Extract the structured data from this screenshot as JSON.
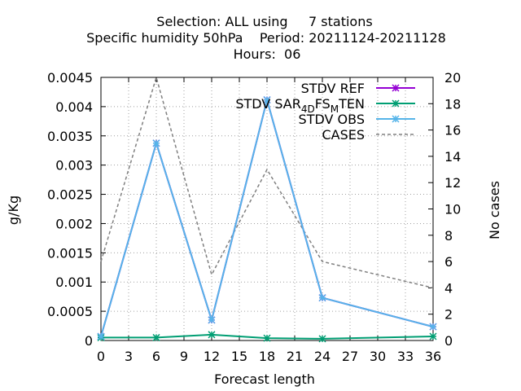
{
  "chart_data": {
    "type": "line",
    "title_lines": [
      "Selection: ALL using     7 stations",
      "Specific humidity 50hPa    Period: 20211124-20211128",
      "Hours:  06"
    ],
    "xlabel": "Forecast length",
    "ylabel": "g/Kg",
    "y2label": "No cases",
    "x_ticks": [
      "0",
      "3",
      "6",
      "9",
      "12",
      "15",
      "18",
      "21",
      "24",
      "27",
      "30",
      "33",
      "36"
    ],
    "y_ticks": [
      "0",
      "0.0005",
      "0.001",
      "0.0015",
      "0.002",
      "0.0025",
      "0.003",
      "0.0035",
      "0.004",
      "0.0045"
    ],
    "y2_ticks": [
      "0",
      "2",
      "4",
      "6",
      "8",
      "10",
      "12",
      "14",
      "16",
      "18",
      "20"
    ],
    "xlim": [
      0,
      36
    ],
    "ylim": [
      0,
      0.0045
    ],
    "y2lim": [
      0,
      20
    ],
    "grid": true,
    "legend_position": "top-right",
    "series": [
      {
        "name": "STDV REF",
        "axis": "left",
        "color": "#9400d3",
        "style": "solid",
        "marker": "star",
        "x": [
          0,
          6,
          12,
          18,
          24,
          36
        ],
        "y": [
          6.8e-05,
          0.003375,
          0.00035,
          0.004115,
          0.00073,
          0.000235
        ]
      },
      {
        "name": "STDV SAR_4DFS_MTEN",
        "axis": "left",
        "color": "#009e73",
        "style": "solid",
        "marker": "star",
        "x": [
          0,
          6,
          12,
          18,
          24,
          36
        ],
        "y": [
          5e-05,
          5e-05,
          0.0001,
          4e-05,
          3e-05,
          7e-05
        ]
      },
      {
        "name": "STDV OBS",
        "axis": "left",
        "color": "#56b4e9",
        "style": "solid",
        "marker": "star",
        "x": [
          0,
          6,
          12,
          18,
          24,
          36
        ],
        "y": [
          6.8e-05,
          0.003375,
          0.00035,
          0.004115,
          0.00073,
          0.000235
        ]
      },
      {
        "name": "CASES",
        "axis": "right",
        "color": "#808080",
        "style": "dashed",
        "marker": "none",
        "x": [
          0,
          6,
          12,
          18,
          24,
          36
        ],
        "y": [
          6,
          20,
          5,
          13,
          6,
          4
        ]
      }
    ],
    "legend": {
      "ref_label": "STDV REF",
      "sar_prefix": "STDV SAR",
      "sar_sub1": "4D",
      "sar_mid": "FS",
      "sar_sub2": "M",
      "sar_suffix": "TEN",
      "obs_label": "STDV OBS",
      "cases_label": "CASES"
    }
  }
}
